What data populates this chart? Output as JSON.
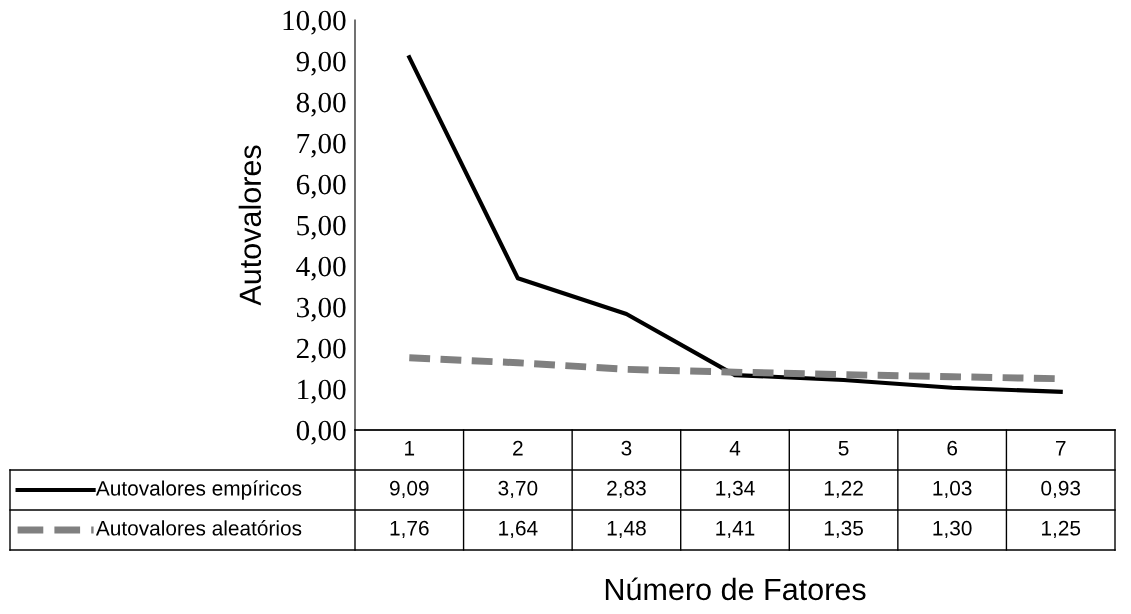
{
  "chart_data": {
    "type": "line",
    "xlabel": "Número de Fatores",
    "ylabel": "Autovalores",
    "categories": [
      "1",
      "2",
      "3",
      "4",
      "5",
      "6",
      "7"
    ],
    "series": [
      {
        "name": "Autovalores empíricos",
        "color": "#000000",
        "line_style": "solid",
        "values": [
          9.09,
          3.7,
          2.83,
          1.34,
          1.22,
          1.03,
          0.93
        ],
        "value_labels": [
          "9,09",
          "3,70",
          "2,83",
          "1,34",
          "1,22",
          "1,03",
          "0,93"
        ]
      },
      {
        "name": "Autovalores aleatórios",
        "color": "#808080",
        "line_style": "dashed",
        "values": [
          1.76,
          1.64,
          1.48,
          1.41,
          1.35,
          1.3,
          1.25
        ],
        "value_labels": [
          "1,76",
          "1,64",
          "1,48",
          "1,41",
          "1,35",
          "1,30",
          "1,25"
        ]
      }
    ],
    "ylim": [
      0,
      10
    ],
    "yticks": [
      {
        "value": 0,
        "label": "0,00"
      },
      {
        "value": 1,
        "label": "1,00"
      },
      {
        "value": 2,
        "label": "2,00"
      },
      {
        "value": 3,
        "label": "3,00"
      },
      {
        "value": 4,
        "label": "4,00"
      },
      {
        "value": 5,
        "label": "5,00"
      },
      {
        "value": 6,
        "label": "6,00"
      },
      {
        "value": 7,
        "label": "7,00"
      },
      {
        "value": 8,
        "label": "8,00"
      },
      {
        "value": 9,
        "label": "9,00"
      },
      {
        "value": 10,
        "label": "10,00"
      }
    ],
    "grid": false,
    "legend": "bottom",
    "marker": "none"
  }
}
